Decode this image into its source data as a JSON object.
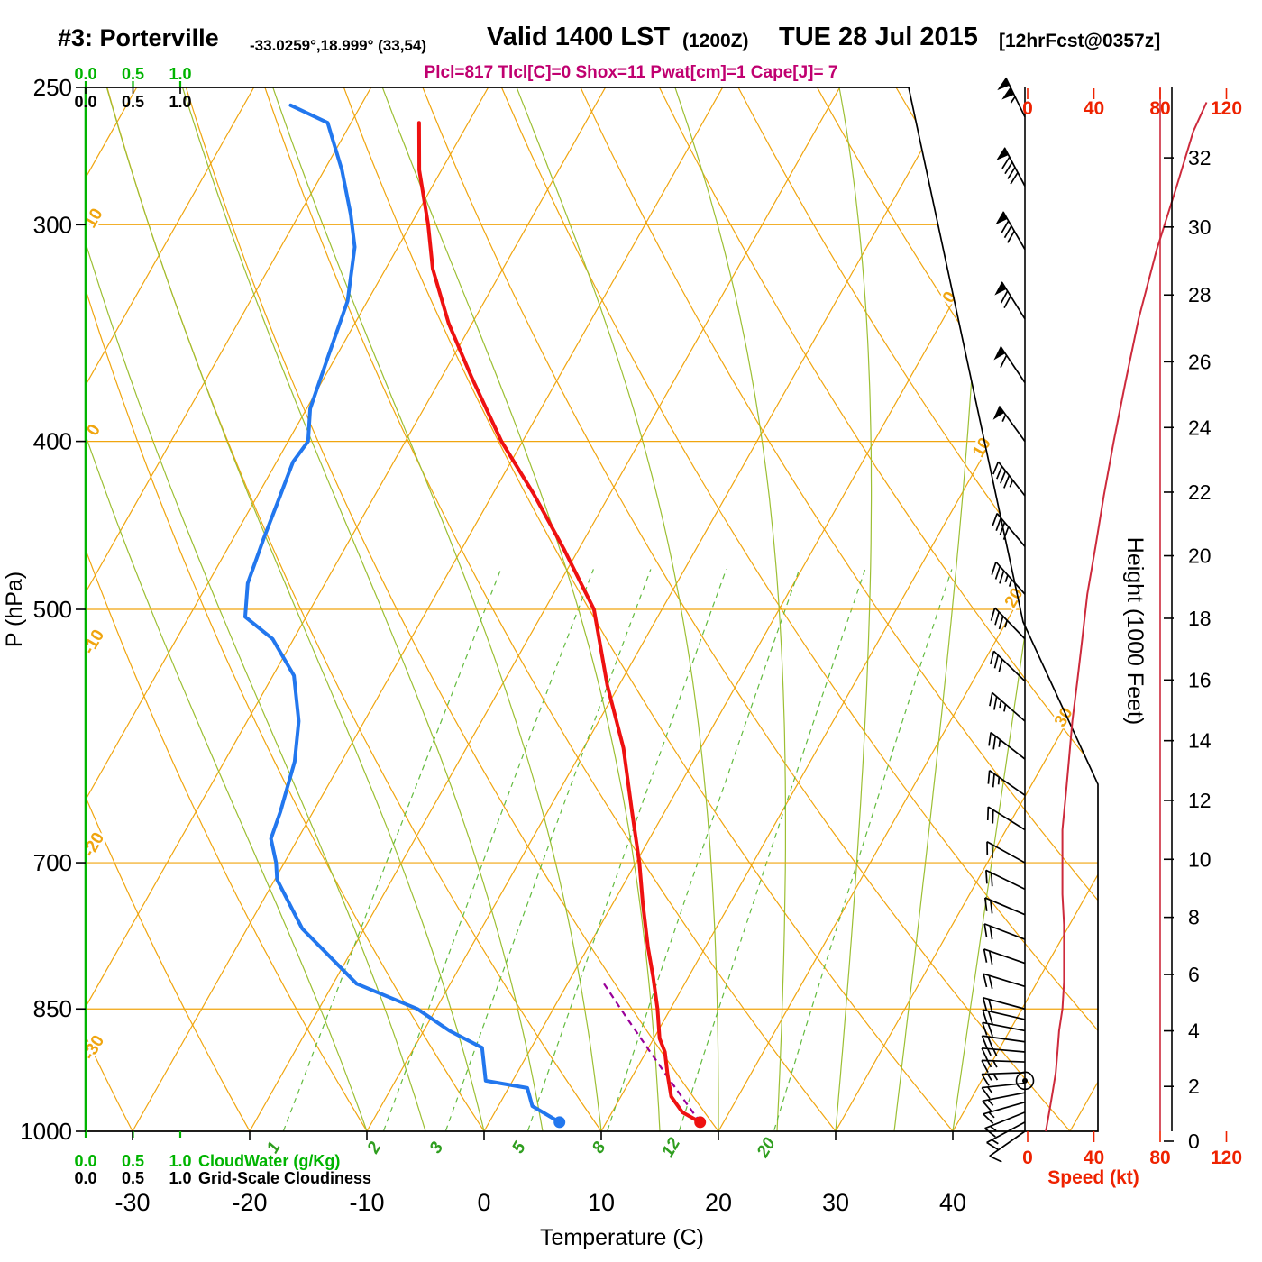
{
  "header": {
    "station": "#3: Porterville",
    "coords": "-33.0259°,18.999° (33,54)",
    "valid_main": "Valid 1400 LST",
    "valid_z": "(1200Z)",
    "valid_date": "TUE 28 Jul 2015",
    "forecast": "[12hrFcst@0357z]",
    "stats": "Plcl=817 Tlcl[C]=0 Shox=11 Pwat[cm]=1 Cape[J]= 7"
  },
  "axes": {
    "pressure_label": "P (hPa)",
    "pressure_ticks": [
      250,
      300,
      400,
      500,
      700,
      850,
      1000
    ],
    "temp_label": "Temperature (C)",
    "temp_ticks": [
      -30,
      -20,
      -10,
      0,
      10,
      20,
      30,
      40
    ],
    "height_label": "Height (1000 Feet)",
    "height_ticks": [
      0,
      2,
      4,
      6,
      8,
      10,
      12,
      14,
      16,
      18,
      20,
      22,
      24,
      26,
      28,
      30,
      32
    ],
    "speed_label": "Speed (kt)",
    "speed_ticks": [
      0,
      40,
      80,
      120
    ],
    "cloudwater_label": "CloudWater (g/Kg)",
    "cloudwater_ticks": [
      "0.0",
      "0.5",
      "1.0"
    ],
    "cloudiness_label": "Grid-Scale Cloudiness",
    "cloudiness_ticks": [
      "0.0",
      "0.5",
      "1.0"
    ]
  },
  "skewt_background": {
    "isotherms_c": [
      -90,
      -80,
      -70,
      -60,
      -50,
      -40,
      -30,
      -20,
      -10,
      0,
      10,
      20,
      30,
      40,
      50
    ],
    "dry_adiabats_c": [
      -30,
      -20,
      -10,
      0,
      10,
      20,
      30,
      40,
      50,
      60,
      70,
      80,
      90,
      100,
      110
    ],
    "moist_adiabats_c": [
      -10,
      -5,
      0,
      5,
      10,
      15,
      20,
      25,
      30,
      35,
      40
    ],
    "mixing_ratios_gkg": [
      1,
      2,
      3,
      5,
      8,
      12,
      20
    ],
    "isotherm_labels_on_cut": [
      0,
      10,
      20,
      30
    ],
    "dry_adiabat_labels_left": [
      "10",
      "0",
      "-10",
      "-20",
      "-30"
    ]
  },
  "chart_data": {
    "type": "line",
    "subtype": "skew-t log-p atmospheric sounding",
    "title": "#3: Porterville Valid 1400 LST (1200Z) TUE 28 Jul 2015",
    "xlabel": "Temperature (C)",
    "ylabel": "P (hPa)",
    "y_scale": "log",
    "pressure_range_hpa": [
      250,
      1000
    ],
    "temp_axis_range_c": [
      -30,
      40
    ],
    "speed_axis_range_kt": [
      0,
      120
    ],
    "temperature_profile_c": [
      [
        988,
        18
      ],
      [
        975,
        16
      ],
      [
        955,
        14.3
      ],
      [
        927,
        12.9
      ],
      [
        900,
        11.6
      ],
      [
        884,
        10.5
      ],
      [
        850,
        8.9
      ],
      [
        815,
        7
      ],
      [
        783,
        5.1
      ],
      [
        738,
        2.5
      ],
      [
        700,
        0.3
      ],
      [
        654,
        -2.8
      ],
      [
        601,
        -6.6
      ],
      [
        553,
        -11
      ],
      [
        500,
        -15.8
      ],
      [
        462,
        -21.2
      ],
      [
        429,
        -26.5
      ],
      [
        400,
        -31.8
      ],
      [
        367,
        -37.5
      ],
      [
        342,
        -42
      ],
      [
        318,
        -46
      ],
      [
        300,
        -48.5
      ],
      [
        279,
        -51.9
      ],
      [
        262,
        -54.2
      ]
    ],
    "dewpoint_profile_c": [
      [
        988,
        6
      ],
      [
        967,
        2.9
      ],
      [
        944,
        1.6
      ],
      [
        935,
        -2.3
      ],
      [
        895,
        -4.2
      ],
      [
        875,
        -7.8
      ],
      [
        850,
        -11.6
      ],
      [
        822,
        -18
      ],
      [
        764,
        -25.3
      ],
      [
        716,
        -29.8
      ],
      [
        700,
        -30.7
      ],
      [
        678,
        -32.3
      ],
      [
        654,
        -32.8
      ],
      [
        612,
        -34
      ],
      [
        580,
        -35.6
      ],
      [
        546,
        -38.2
      ],
      [
        520,
        -41.8
      ],
      [
        505,
        -45.2
      ],
      [
        483,
        -46.6
      ],
      [
        455,
        -47.4
      ],
      [
        432,
        -48
      ],
      [
        411,
        -48.6
      ],
      [
        400,
        -48.3
      ],
      [
        383,
        -49.7
      ],
      [
        357,
        -50.7
      ],
      [
        332,
        -51.7
      ],
      [
        309,
        -53.7
      ],
      [
        296,
        -55.6
      ],
      [
        279,
        -58.5
      ],
      [
        262,
        -62
      ],
      [
        256,
        -66
      ]
    ],
    "wind_speed_profile_kt": [
      [
        1000,
        11
      ],
      [
        975,
        13
      ],
      [
        950,
        15
      ],
      [
        925,
        17
      ],
      [
        900,
        18
      ],
      [
        875,
        19
      ],
      [
        850,
        21
      ],
      [
        820,
        22
      ],
      [
        790,
        22
      ],
      [
        760,
        22
      ],
      [
        730,
        21
      ],
      [
        700,
        21
      ],
      [
        670,
        21
      ],
      [
        640,
        23
      ],
      [
        610,
        25
      ],
      [
        580,
        27
      ],
      [
        550,
        30
      ],
      [
        520,
        33
      ],
      [
        490,
        36
      ],
      [
        460,
        41
      ],
      [
        430,
        46
      ],
      [
        400,
        52
      ],
      [
        370,
        59
      ],
      [
        340,
        67
      ],
      [
        310,
        78
      ],
      [
        285,
        90
      ],
      [
        265,
        100
      ],
      [
        255,
        108
      ]
    ],
    "wind_barbs": [
      {
        "p": 1000,
        "spd": 12,
        "dir": 235
      },
      {
        "p": 988,
        "spd": 13,
        "dir": 242
      },
      {
        "p": 975,
        "spd": 14,
        "dir": 248
      },
      {
        "p": 962,
        "spd": 15,
        "dir": 254
      },
      {
        "p": 950,
        "spd": 16,
        "dir": 259
      },
      {
        "p": 938,
        "spd": 17,
        "dir": 264
      },
      {
        "p": 925,
        "spd": 18,
        "dir": 268
      },
      {
        "p": 912,
        "spd": 19,
        "dir": 272
      },
      {
        "p": 900,
        "spd": 19,
        "dir": 275
      },
      {
        "p": 888,
        "spd": 20,
        "dir": 278
      },
      {
        "p": 875,
        "spd": 20,
        "dir": 281
      },
      {
        "p": 862,
        "spd": 21,
        "dir": 283
      },
      {
        "p": 850,
        "spd": 21,
        "dir": 285
      },
      {
        "p": 825,
        "spd": 22,
        "dir": 287
      },
      {
        "p": 800,
        "spd": 22,
        "dir": 289
      },
      {
        "p": 775,
        "spd": 22,
        "dir": 291
      },
      {
        "p": 750,
        "spd": 21,
        "dir": 293
      },
      {
        "p": 725,
        "spd": 21,
        "dir": 296
      },
      {
        "p": 700,
        "spd": 21,
        "dir": 299
      },
      {
        "p": 670,
        "spd": 22,
        "dir": 302
      },
      {
        "p": 640,
        "spd": 24,
        "dir": 305
      },
      {
        "p": 610,
        "spd": 26,
        "dir": 308
      },
      {
        "p": 580,
        "spd": 28,
        "dir": 311
      },
      {
        "p": 550,
        "spd": 31,
        "dir": 314
      },
      {
        "p": 520,
        "spd": 34,
        "dir": 316
      },
      {
        "p": 490,
        "spd": 38,
        "dir": 318
      },
      {
        "p": 460,
        "spd": 42,
        "dir": 320
      },
      {
        "p": 430,
        "spd": 47,
        "dir": 322
      },
      {
        "p": 400,
        "spd": 55,
        "dir": 324
      },
      {
        "p": 370,
        "spd": 62,
        "dir": 326
      },
      {
        "p": 340,
        "spd": 70,
        "dir": 328
      },
      {
        "p": 310,
        "spd": 80,
        "dir": 330
      },
      {
        "p": 285,
        "spd": 92,
        "dir": 332
      },
      {
        "p": 260,
        "spd": 105,
        "dir": 334
      }
    ],
    "parcel": {
      "p_surface_hpa": 988,
      "t_surface_c": 18,
      "p_lcl_hpa": 817,
      "t_lcl_c": 0
    },
    "surface_temp_marker_c": 18,
    "surface_dewpoint_marker_c": 6,
    "station_marker_pressure_hpa": 935,
    "legend_position": "none",
    "grid": true
  },
  "colors": {
    "orange": "#f0a50f",
    "green_axis": "#00b400",
    "green_moist": "#9cbf33",
    "green_mix": "#63bb3f",
    "green_mix_label": "#2f9e1f",
    "red": "#ee1111",
    "blue": "#2277ee",
    "red_speed": "#cd2a3c",
    "red_axis": "#ee2200",
    "magenta": "#c00070",
    "magenta_parcel": "#990099",
    "black": "#000000"
  }
}
